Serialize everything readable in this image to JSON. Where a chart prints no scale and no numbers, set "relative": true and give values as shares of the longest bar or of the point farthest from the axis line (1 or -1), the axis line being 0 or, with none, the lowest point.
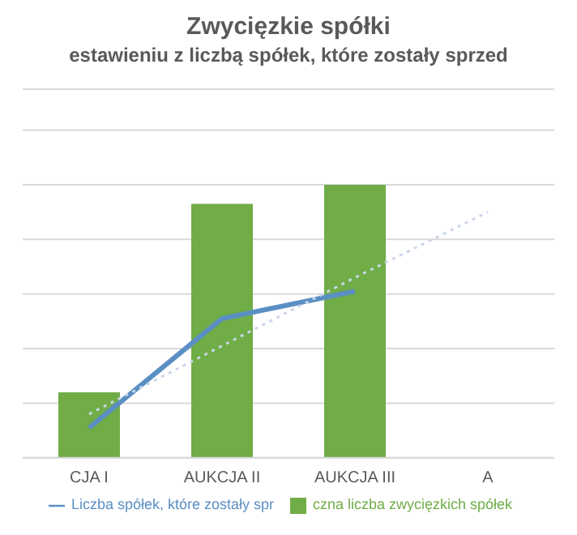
{
  "chart_data": {
    "type": "bar",
    "title": "Zwycięzkie spółki",
    "subtitle": "estawieniu z liczbą spółek, które zostały sprzed",
    "categories": [
      "CJA I",
      "AUKCJA II",
      "AUKCJA III",
      "A"
    ],
    "relative": true,
    "grid": "y",
    "legend": "bottom",
    "series": [
      {
        "name": "czna liczba zwycięzkich spółek",
        "color": "#70ad47",
        "values": [
          0.24,
          0.93,
          1,
          null
        ]
      },
      {
        "name": "Liczba spółek, które zostały spr",
        "type": "line",
        "color": "#5b8fc4",
        "values": [
          0.11,
          0.51,
          0.61,
          null
        ]
      },
      {
        "type": "line",
        "color": "#c9d6e8",
        "line_style": "dotted",
        "values": [
          0.16,
          0.41,
          0.66,
          0.9
        ]
      }
    ]
  }
}
